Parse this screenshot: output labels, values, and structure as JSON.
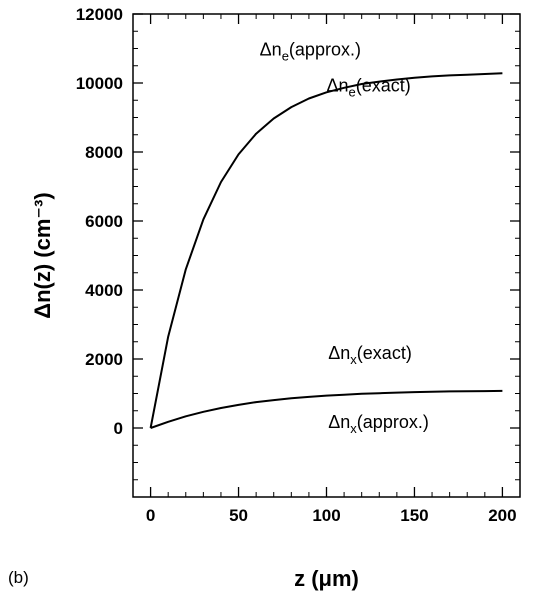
{
  "chart_data": {
    "type": "line",
    "panel_label": "(b)",
    "xlabel": "z (μm)",
    "ylabel": "Δn(z) (cm⁻³)",
    "xlim": [
      -10,
      210
    ],
    "ylim": [
      -2000,
      12000
    ],
    "xticks": [
      0,
      50,
      100,
      150,
      200
    ],
    "yticks": [
      0,
      2000,
      4000,
      6000,
      8000,
      10000,
      12000
    ],
    "x_minor_step": 10,
    "y_minor_step": 500,
    "grid": false,
    "series": [
      {
        "name": "Δn_e",
        "color": "#000000",
        "x": [
          0,
          10,
          20,
          30,
          40,
          50,
          60,
          70,
          80,
          90,
          100,
          110,
          120,
          130,
          140,
          150,
          160,
          170,
          180,
          190,
          200
        ],
        "y": [
          0,
          2650,
          4600,
          6050,
          7130,
          7930,
          8530,
          8970,
          9300,
          9550,
          9730,
          9860,
          9970,
          10040,
          10100,
          10150,
          10190,
          10220,
          10240,
          10260,
          10280
        ]
      },
      {
        "name": "Δn_x",
        "color": "#000000",
        "x": [
          0,
          10,
          20,
          30,
          40,
          50,
          60,
          70,
          80,
          90,
          100,
          110,
          120,
          130,
          140,
          150,
          160,
          170,
          180,
          190,
          200
        ],
        "y": [
          0,
          180,
          340,
          470,
          580,
          670,
          750,
          810,
          860,
          900,
          940,
          965,
          990,
          1010,
          1025,
          1040,
          1050,
          1060,
          1065,
          1070,
          1075
        ]
      }
    ],
    "annotations": [
      {
        "base": "Δn",
        "sub": "e",
        "suffix": "(approx.)",
        "x": 62,
        "y": 10800
      },
      {
        "base": "Δn",
        "sub": "e",
        "suffix": "(exact)",
        "x": 100,
        "y": 9750
      },
      {
        "base": "Δn",
        "sub": "x",
        "suffix": "(exact)",
        "x": 101,
        "y": 2000
      },
      {
        "base": "Δn",
        "sub": "x",
        "suffix": "(approx.)",
        "x": 101,
        "y": 0
      }
    ]
  }
}
